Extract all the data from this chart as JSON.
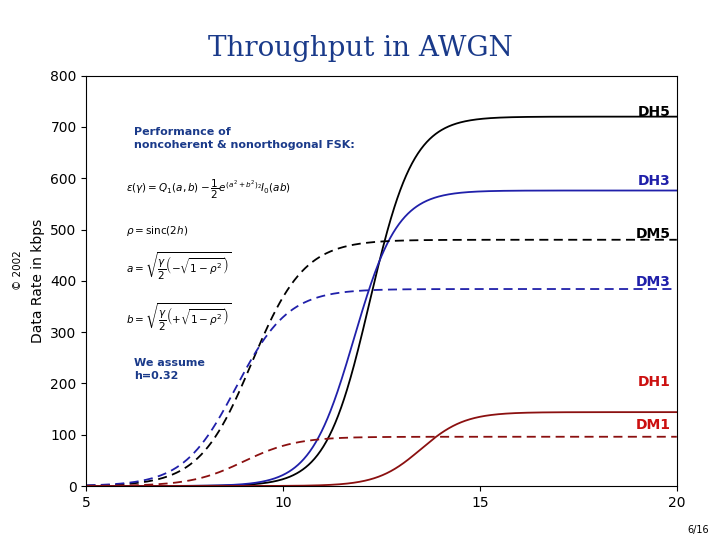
{
  "title": "Throughput in AWGN",
  "title_color": "#1a3a8a",
  "ylabel": "Data Rate in kbps",
  "xlim": [
    5,
    20
  ],
  "ylim": [
    0,
    800
  ],
  "xticks": [
    5,
    10,
    15,
    20
  ],
  "yticks": [
    0,
    100,
    200,
    300,
    400,
    500,
    600,
    700,
    800
  ],
  "curves": {
    "DH5": {
      "color": "black",
      "linestyle": "solid",
      "max_val": 720,
      "midpoint": 12.2,
      "steepness": 1.8
    },
    "DH3": {
      "color": "#2020aa",
      "linestyle": "solid",
      "max_val": 576,
      "midpoint": 11.8,
      "steepness": 1.8
    },
    "DM5": {
      "color": "black",
      "linestyle": "dashed",
      "max_val": 480,
      "midpoint": 9.2,
      "steepness": 1.5
    },
    "DM3": {
      "color": "#2020aa",
      "linestyle": "dashed",
      "max_val": 384,
      "midpoint": 8.8,
      "steepness": 1.5
    },
    "DH1": {
      "color": "#8b1010",
      "linestyle": "solid",
      "max_val": 144,
      "midpoint": 13.5,
      "steepness": 1.8
    },
    "DM1": {
      "color": "#8b1010",
      "linestyle": "dashed",
      "max_val": 96,
      "midpoint": 9.0,
      "steepness": 1.5
    }
  },
  "label_colors": {
    "DH5": "black",
    "DH3": "#2020aa",
    "DM5": "black",
    "DM3": "#2020aa",
    "DH1": "#cc1010",
    "DM1": "#cc1010"
  },
  "annotation1_color": "#1a3a8a",
  "annotation2_color": "#1a3a8a",
  "copyright": "© 2002",
  "page": "6/16",
  "background_color": "white"
}
